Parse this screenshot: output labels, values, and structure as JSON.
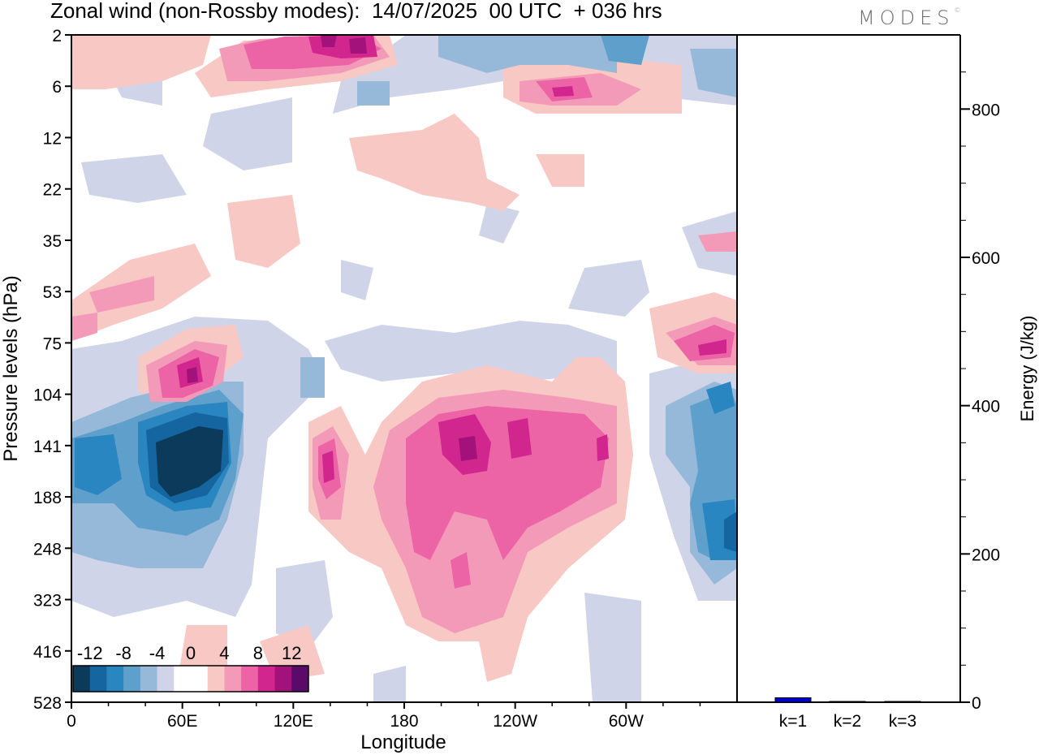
{
  "header": {
    "title": "Zonal wind (non-Rossby modes):  14/07/2025  00 UTC  + 036 hrs",
    "brand": "MODES",
    "brand_mark": "©"
  },
  "chart_data": [
    {
      "type": "heatmap",
      "title": "Zonal wind (non-Rossby modes):  14/07/2025  00 UTC  + 036 hrs",
      "xlabel": "Longitude",
      "ylabel": "Pressure levels (hPa)",
      "x_ticks": [
        "0",
        "60E",
        "120E",
        "180",
        "120W",
        "60W"
      ],
      "y_ticks": [
        "2",
        "6",
        "12",
        "22",
        "35",
        "53",
        "75",
        "104",
        "141",
        "188",
        "248",
        "323",
        "416",
        "528"
      ],
      "colorbar": {
        "labels": [
          "-12",
          "-8",
          "-4",
          "0",
          "4",
          "8",
          "12"
        ],
        "colors": [
          "#0b3a5a",
          "#1565a0",
          "#2a86c0",
          "#5f9fcc",
          "#96b8d9",
          "#cfd4e8",
          "#ffffff",
          "#ffffff",
          "#f8c8c4",
          "#f39ab8",
          "#ec63a6",
          "#d0268e",
          "#a3127a",
          "#5b0a6a"
        ]
      },
      "features": [
        {
          "lon": 65,
          "level": "141",
          "value": -14
        },
        {
          "lon": 20,
          "level": "141",
          "value": -10
        },
        {
          "lon": 55,
          "level": "104",
          "value": 8
        },
        {
          "lon": 140,
          "level": "141",
          "value": 10
        },
        {
          "lon": 220,
          "level": "141",
          "value": 12
        },
        {
          "lon": 270,
          "level": "141",
          "value": 10
        },
        {
          "lon": 300,
          "level": "141",
          "value": 10
        },
        {
          "lon": 95,
          "level": "2",
          "value": 12
        },
        {
          "lon": 150,
          "level": "2",
          "value": 14
        },
        {
          "lon": 245,
          "level": "6",
          "value": 8
        },
        {
          "lon": 345,
          "level": "75",
          "value": 8
        },
        {
          "lon": 355,
          "level": "188",
          "value": -8
        },
        {
          "lon": 285,
          "level": "2",
          "value": -8
        }
      ]
    },
    {
      "type": "bar",
      "ylabel": "Energy (J/kg)",
      "categories": [
        "k=1",
        "k=2",
        "k=3"
      ],
      "values": [
        6,
        1,
        1
      ],
      "ylim": [
        0,
        900
      ],
      "y_ticks": [
        0,
        200,
        400,
        600,
        800
      ],
      "bar_color": "#0000cc"
    }
  ]
}
